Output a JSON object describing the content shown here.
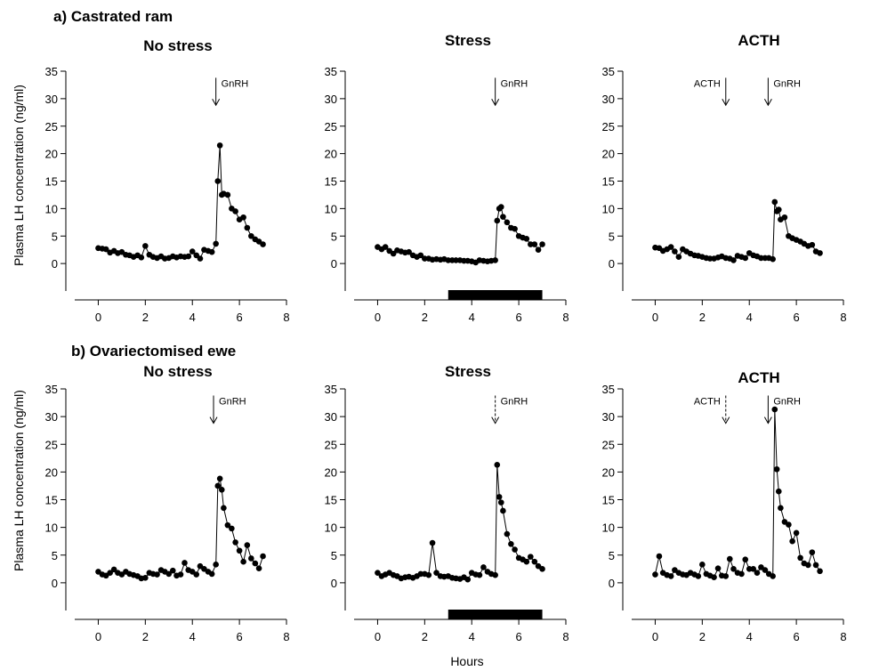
{
  "sections": [
    {
      "label": "a) Castrated ram"
    },
    {
      "label": "b) Ovariectomised ewe"
    }
  ],
  "ylabel": "Plasma LH concentration (ng/ml)",
  "xlabel": "Hours",
  "colors": {
    "marker": "#000000",
    "stress_bar": "#000000"
  },
  "chart_data": [
    {
      "type": "line",
      "section": 0,
      "title": "No stress",
      "xlim": [
        -1,
        8
      ],
      "ylim": [
        -5,
        35
      ],
      "xticks": [
        0,
        2,
        4,
        6,
        8
      ],
      "yticks": [
        0,
        5,
        10,
        15,
        20,
        25,
        30,
        35
      ],
      "annotations": [
        {
          "label": "GnRH",
          "x": 5,
          "style": "solid"
        }
      ],
      "stress_period": null,
      "series": [
        {
          "x": [
            0,
            0.17,
            0.33,
            0.5,
            0.67,
            0.83,
            1,
            1.17,
            1.33,
            1.5,
            1.67,
            1.83,
            2,
            2.17,
            2.33,
            2.5,
            2.67,
            2.83,
            3,
            3.17,
            3.33,
            3.5,
            3.67,
            3.83,
            4,
            4.17,
            4.33,
            4.5,
            4.67,
            4.83,
            5,
            5.08,
            5.17,
            5.25,
            5.33,
            5.5,
            5.67,
            5.83,
            6,
            6.17,
            6.33,
            6.5,
            6.67,
            6.83,
            7
          ],
          "y": [
            2.8,
            2.7,
            2.6,
            2.0,
            2.3,
            1.9,
            2.1,
            1.6,
            1.5,
            1.2,
            1.5,
            1.1,
            3.2,
            1.6,
            1.2,
            1.0,
            1.3,
            0.9,
            1.0,
            1.3,
            1.1,
            1.3,
            1.2,
            1.3,
            2.2,
            1.5,
            0.9,
            2.5,
            2.3,
            2.1,
            3.6,
            15.0,
            21.5,
            12.5,
            12.7,
            12.5,
            10.0,
            9.5,
            8.0,
            8.4,
            6.5,
            5.0,
            4.4,
            4.0,
            3.5
          ]
        }
      ]
    },
    {
      "type": "line",
      "section": 0,
      "title": "Stress",
      "xlim": [
        -1,
        8
      ],
      "ylim": [
        -5,
        35
      ],
      "xticks": [
        0,
        2,
        4,
        6,
        8
      ],
      "yticks": [
        0,
        5,
        10,
        15,
        20,
        25,
        30,
        35
      ],
      "annotations": [
        {
          "label": "GnRH",
          "x": 5,
          "style": "solid"
        }
      ],
      "stress_period": [
        3,
        7
      ],
      "series": [
        {
          "x": [
            0,
            0.17,
            0.33,
            0.5,
            0.67,
            0.83,
            1,
            1.17,
            1.33,
            1.5,
            1.67,
            1.83,
            2,
            2.17,
            2.33,
            2.5,
            2.67,
            2.83,
            3,
            3.17,
            3.33,
            3.5,
            3.67,
            3.83,
            4,
            4.17,
            4.33,
            4.5,
            4.67,
            4.83,
            5,
            5.08,
            5.17,
            5.25,
            5.33,
            5.5,
            5.67,
            5.83,
            6,
            6.17,
            6.33,
            6.5,
            6.67,
            6.83,
            7
          ],
          "y": [
            3.0,
            2.6,
            3.0,
            2.3,
            1.8,
            2.4,
            2.2,
            2.0,
            2.1,
            1.5,
            1.2,
            1.5,
            0.9,
            0.9,
            0.7,
            0.8,
            0.7,
            0.8,
            0.6,
            0.6,
            0.6,
            0.6,
            0.5,
            0.5,
            0.4,
            0.2,
            0.6,
            0.5,
            0.4,
            0.5,
            0.6,
            7.8,
            10.0,
            10.3,
            8.5,
            7.5,
            6.5,
            6.3,
            5.0,
            4.7,
            4.5,
            3.5,
            3.5,
            2.5,
            3.5
          ]
        }
      ]
    },
    {
      "type": "line",
      "section": 0,
      "title": "ACTH",
      "xlim": [
        -1,
        8
      ],
      "ylim": [
        -5,
        35
      ],
      "xticks": [
        0,
        2,
        4,
        6,
        8
      ],
      "yticks": [
        0,
        5,
        10,
        15,
        20,
        25,
        30,
        35
      ],
      "annotations": [
        {
          "label": "ACTH",
          "x": 3,
          "style": "solid"
        },
        {
          "label": "GnRH",
          "x": 4.8,
          "style": "solid"
        }
      ],
      "stress_period": null,
      "series": [
        {
          "x": [
            0,
            0.17,
            0.33,
            0.5,
            0.67,
            0.83,
            1,
            1.17,
            1.33,
            1.5,
            1.67,
            1.83,
            2,
            2.17,
            2.33,
            2.5,
            2.67,
            2.83,
            3,
            3.17,
            3.33,
            3.5,
            3.67,
            3.83,
            4,
            4.17,
            4.33,
            4.5,
            4.67,
            4.83,
            5,
            5.08,
            5.17,
            5.25,
            5.33,
            5.5,
            5.67,
            5.83,
            6,
            6.17,
            6.33,
            6.5,
            6.67,
            6.83,
            7
          ],
          "y": [
            2.9,
            2.8,
            2.3,
            2.6,
            3.0,
            2.2,
            1.2,
            2.6,
            2.2,
            1.8,
            1.5,
            1.4,
            1.2,
            1.0,
            0.9,
            0.9,
            1.1,
            1.3,
            1.0,
            0.9,
            0.6,
            1.4,
            1.2,
            1.0,
            1.9,
            1.5,
            1.3,
            1.0,
            1.0,
            1.0,
            0.8,
            11.2,
            9.5,
            9.8,
            8.0,
            8.4,
            5.0,
            4.6,
            4.3,
            4.0,
            3.6,
            3.2,
            3.4,
            2.2,
            1.9
          ]
        }
      ]
    },
    {
      "type": "line",
      "section": 1,
      "title": "No stress",
      "xlim": [
        -1,
        8
      ],
      "ylim": [
        -5,
        35
      ],
      "xticks": [
        0,
        2,
        4,
        6,
        8
      ],
      "yticks": [
        0,
        5,
        10,
        15,
        20,
        25,
        30,
        35
      ],
      "annotations": [
        {
          "label": "GnRH",
          "x": 4.9,
          "style": "solid"
        }
      ],
      "stress_period": null,
      "series": [
        {
          "x": [
            0,
            0.17,
            0.33,
            0.5,
            0.67,
            0.83,
            1,
            1.17,
            1.33,
            1.5,
            1.67,
            1.83,
            2,
            2.17,
            2.33,
            2.5,
            2.67,
            2.83,
            3,
            3.17,
            3.33,
            3.5,
            3.67,
            3.83,
            4,
            4.17,
            4.33,
            4.5,
            4.67,
            4.83,
            5,
            5.08,
            5.17,
            5.25,
            5.33,
            5.5,
            5.67,
            5.83,
            6,
            6.17,
            6.33,
            6.5,
            6.67,
            6.83,
            7
          ],
          "y": [
            2.0,
            1.5,
            1.3,
            1.8,
            2.4,
            1.8,
            1.5,
            2.0,
            1.6,
            1.4,
            1.2,
            0.8,
            0.9,
            1.8,
            1.6,
            1.5,
            2.3,
            2.0,
            1.6,
            2.2,
            1.3,
            1.5,
            3.6,
            2.3,
            2.0,
            1.5,
            3.0,
            2.5,
            2.0,
            1.6,
            3.3,
            17.5,
            18.8,
            16.8,
            13.5,
            10.4,
            9.8,
            7.3,
            5.8,
            3.8,
            6.8,
            4.4,
            3.5,
            2.6,
            4.8
          ]
        }
      ]
    },
    {
      "type": "line",
      "section": 1,
      "title": "Stress",
      "xlim": [
        -1,
        8
      ],
      "ylim": [
        -5,
        35
      ],
      "xticks": [
        0,
        2,
        4,
        6,
        8
      ],
      "yticks": [
        0,
        5,
        10,
        15,
        20,
        25,
        30,
        35
      ],
      "annotations": [
        {
          "label": "GnRH",
          "x": 5,
          "style": "dashed"
        }
      ],
      "stress_period": [
        3,
        7
      ],
      "series": [
        {
          "x": [
            0,
            0.17,
            0.33,
            0.5,
            0.67,
            0.83,
            1,
            1.17,
            1.33,
            1.5,
            1.67,
            1.83,
            2,
            2.17,
            2.33,
            2.5,
            2.67,
            2.83,
            3,
            3.17,
            3.33,
            3.5,
            3.67,
            3.83,
            4,
            4.17,
            4.33,
            4.5,
            4.67,
            4.83,
            5,
            5.08,
            5.17,
            5.25,
            5.33,
            5.5,
            5.67,
            5.83,
            6,
            6.17,
            6.33,
            6.5,
            6.67,
            6.83,
            7
          ],
          "y": [
            1.8,
            1.2,
            1.5,
            1.8,
            1.4,
            1.2,
            0.8,
            1.0,
            1.1,
            0.9,
            1.2,
            1.6,
            1.6,
            1.4,
            7.2,
            1.8,
            1.2,
            1.1,
            1.2,
            0.9,
            0.8,
            0.7,
            1.0,
            0.6,
            1.8,
            1.5,
            1.4,
            2.8,
            2.0,
            1.6,
            1.4,
            21.3,
            15.5,
            14.5,
            13.0,
            8.8,
            7.0,
            6.0,
            4.5,
            4.2,
            3.8,
            4.7,
            3.8,
            3.0,
            2.5
          ]
        }
      ]
    },
    {
      "type": "line",
      "section": 1,
      "title": "ACTH",
      "xlim": [
        -1,
        8
      ],
      "ylim": [
        -5,
        35
      ],
      "xticks": [
        0,
        2,
        4,
        6,
        8
      ],
      "yticks": [
        0,
        5,
        10,
        15,
        20,
        25,
        30,
        35
      ],
      "annotations": [
        {
          "label": "ACTH",
          "x": 3,
          "style": "dashed"
        },
        {
          "label": "GnRH",
          "x": 4.8,
          "style": "solid"
        }
      ],
      "stress_period": null,
      "series": [
        {
          "x": [
            0,
            0.17,
            0.33,
            0.5,
            0.67,
            0.83,
            1,
            1.17,
            1.33,
            1.5,
            1.67,
            1.83,
            2,
            2.17,
            2.33,
            2.5,
            2.67,
            2.83,
            3,
            3.17,
            3.33,
            3.5,
            3.67,
            3.83,
            4,
            4.17,
            4.33,
            4.5,
            4.67,
            4.83,
            5,
            5.08,
            5.17,
            5.25,
            5.33,
            5.5,
            5.67,
            5.83,
            6,
            6.17,
            6.33,
            6.5,
            6.67,
            6.83,
            7
          ],
          "y": [
            1.5,
            4.8,
            1.8,
            1.4,
            1.2,
            2.3,
            1.8,
            1.5,
            1.4,
            1.8,
            1.5,
            1.2,
            3.3,
            1.6,
            1.3,
            1.0,
            2.6,
            1.3,
            1.2,
            4.3,
            2.5,
            1.8,
            1.6,
            4.2,
            2.5,
            2.5,
            1.8,
            2.8,
            2.3,
            1.6,
            1.2,
            31.3,
            20.5,
            16.5,
            13.5,
            11.0,
            10.5,
            7.5,
            9.0,
            4.5,
            3.5,
            3.2,
            5.5,
            3.2,
            2.1
          ]
        }
      ]
    }
  ]
}
